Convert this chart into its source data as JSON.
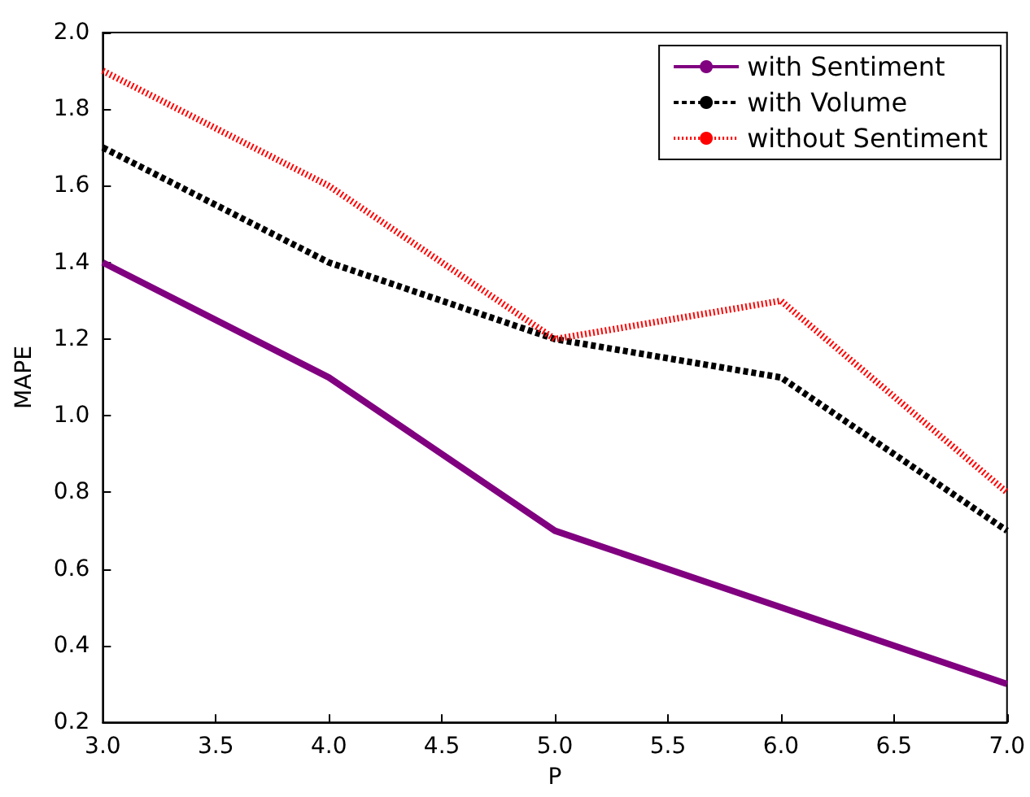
{
  "chart_data": {
    "type": "line",
    "xlabel": "P",
    "ylabel": "MAPE",
    "x": [
      3,
      4,
      5,
      6,
      7
    ],
    "series": [
      {
        "name": "with Sentiment",
        "color": "#800080",
        "values": [
          1.4,
          1.1,
          0.7,
          0.5,
          0.3
        ],
        "line_style": "solid"
      },
      {
        "name": "with Volume",
        "color": "#000000",
        "values": [
          1.7,
          1.4,
          1.2,
          1.1,
          0.7
        ],
        "line_style": "dashed"
      },
      {
        "name": "without Sentiment",
        "color": "#ff0000",
        "values": [
          1.9,
          1.6,
          1.2,
          1.3,
          0.8
        ],
        "line_style": "dotted"
      }
    ],
    "xlim": [
      3,
      7
    ],
    "xticks": [
      {
        "value": 3,
        "label": "3.0"
      },
      {
        "value": 3.5,
        "label": "3.5"
      },
      {
        "value": 4,
        "label": "4.0"
      },
      {
        "value": 4.5,
        "label": "4.5"
      },
      {
        "value": 5,
        "label": "5.0"
      },
      {
        "value": 5.5,
        "label": "5.5"
      },
      {
        "value": 6,
        "label": "6.0"
      },
      {
        "value": 6.5,
        "label": "6.5"
      },
      {
        "value": 7,
        "label": "7.0"
      }
    ],
    "ylim": [
      0.2,
      2.0
    ],
    "yticks": [
      0.2,
      0.4,
      0.6,
      0.8,
      {
        "value": 1.0,
        "label": "1.0"
      },
      1.2,
      1.4,
      1.6,
      1.8,
      {
        "value": 2.0,
        "label": "2.0"
      }
    ],
    "grid": false,
    "legend": "top right",
    "marker": "none"
  }
}
